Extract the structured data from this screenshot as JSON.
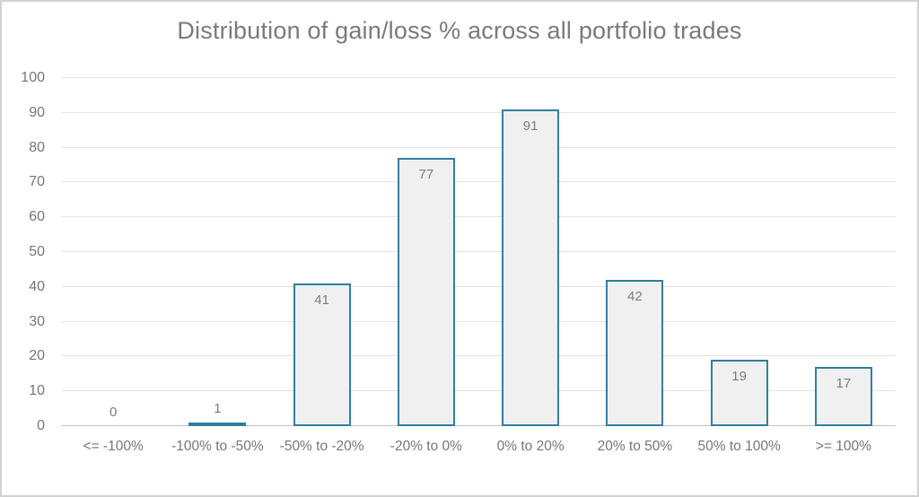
{
  "title": "Distribution of gain/loss % across all portfolio trades",
  "chart_data": {
    "type": "bar",
    "title": "Distribution of gain/loss % across all portfolio trades",
    "categories": [
      "<= -100%",
      "-100% to -50%",
      "-50% to -20%",
      "-20% to 0%",
      "0% to 20%",
      "20% to 50%",
      "50% to 100%",
      ">= 100%"
    ],
    "values": [
      0,
      1,
      41,
      77,
      91,
      42,
      19,
      17
    ],
    "data_labels": [
      "0",
      "1",
      "41",
      "77",
      "91",
      "42",
      "19",
      "17"
    ],
    "xlabel": "",
    "ylabel": "",
    "ylim": [
      0,
      100
    ],
    "ytick_interval": 10,
    "grid": true,
    "legend_position": "none",
    "colors": {
      "bar_fill": "#f0f0f1",
      "bar_border": "#2e7f9f",
      "gridline": "#e2e2e2",
      "axis_line": "#c4c4c4",
      "tick_text": "#767676",
      "data_label_text": "#7c7c7c",
      "title_text": "#7a7a7a",
      "frame_border": "#d2d2d2"
    }
  }
}
